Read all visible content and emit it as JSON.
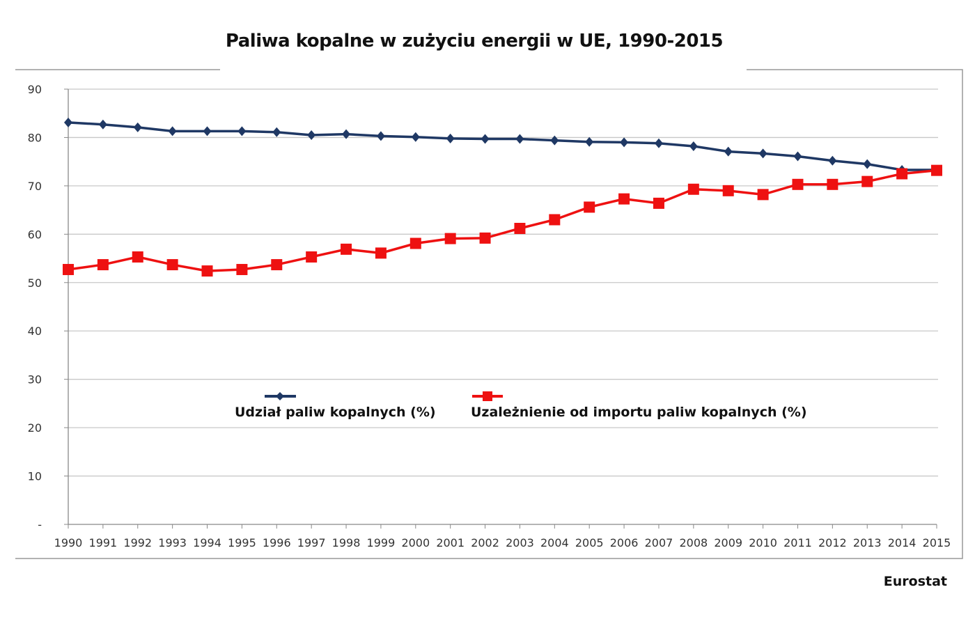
{
  "chart_data": {
    "type": "line",
    "title": "Paliwa kopalne w zużyciu energii w UE, 1990-2015",
    "source": "Eurostat",
    "xlabel": "",
    "ylabel": "",
    "ylim": [
      0,
      90
    ],
    "yticks": [
      "-",
      "10",
      "20",
      "30",
      "40",
      "50",
      "60",
      "70",
      "80",
      "90"
    ],
    "grid": true,
    "legend_placement": "center",
    "x": [
      "1990",
      "1991",
      "1992",
      "1993",
      "1994",
      "1995",
      "1996",
      "1997",
      "1998",
      "1999",
      "2000",
      "2001",
      "2002",
      "2003",
      "2004",
      "2005",
      "2006",
      "2007",
      "2008",
      "2009",
      "2010",
      "2011",
      "2012",
      "2013",
      "2014",
      "2015"
    ],
    "series": [
      {
        "name": "Udział paliw kopalnych (%)",
        "color": "#1f3864",
        "marker": "diamond",
        "values": [
          83.1,
          82.7,
          82.1,
          81.3,
          81.3,
          81.3,
          81.1,
          80.5,
          80.7,
          80.3,
          80.1,
          79.8,
          79.7,
          79.7,
          79.4,
          79.1,
          79.0,
          78.8,
          78.2,
          77.1,
          76.7,
          76.1,
          75.2,
          74.5,
          73.3,
          73.3
        ]
      },
      {
        "name": "Uzależnienie od importu paliw kopalnych (%)",
        "color": "#ee1111",
        "marker": "square",
        "values": [
          52.7,
          53.7,
          55.3,
          53.7,
          52.4,
          52.7,
          53.7,
          55.3,
          56.9,
          56.1,
          58.1,
          59.1,
          59.2,
          61.2,
          63.0,
          65.6,
          67.3,
          66.4,
          69.3,
          69.0,
          68.2,
          70.3,
          70.3,
          70.9,
          72.5,
          73.2
        ]
      }
    ]
  }
}
